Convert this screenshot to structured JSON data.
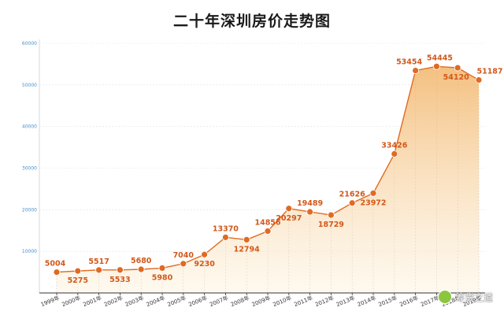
{
  "chart_data": {
    "type": "area",
    "title": "二十年深圳房价走势图",
    "categories": [
      "1999年",
      "2000年",
      "2001年",
      "2002年",
      "2003年",
      "2004年",
      "2005年",
      "2006年",
      "2007年",
      "2008年",
      "2009年",
      "2010年",
      "2011年",
      "2012年",
      "2013年",
      "2014年",
      "2015年",
      "2016年",
      "2017年",
      "2018年",
      "2019年"
    ],
    "values": [
      5004,
      5275,
      5517,
      5533,
      5680,
      5980,
      7040,
      9230,
      13370,
      12794,
      14856,
      20297,
      19489,
      18729,
      21626,
      23972,
      33426,
      53454,
      54445,
      54120,
      51187
    ],
    "labels": [
      "5004",
      "5275",
      "5517",
      "5533",
      "5680",
      "5980",
      "7040",
      "9230",
      "13370",
      "12794",
      "14856",
      "20297",
      "19489",
      "18729",
      "21626",
      "23972",
      "33426",
      "53454",
      "54445",
      "54120",
      "51187"
    ],
    "y_ticks": [
      "10000",
      "20000",
      "30000",
      "40000",
      "50000",
      "60000"
    ],
    "ylim": [
      0,
      60000
    ],
    "grid": true,
    "colors": {
      "line": "#e06a22",
      "marker": "#e06a22",
      "fill_top": "#f2b56a",
      "fill_bottom": "#fdf3df",
      "label": "#d2581a",
      "axis_tick": "#4a90c8"
    }
  },
  "watermark": {
    "text": "筹货之道",
    "icon": "wechat-icon"
  }
}
